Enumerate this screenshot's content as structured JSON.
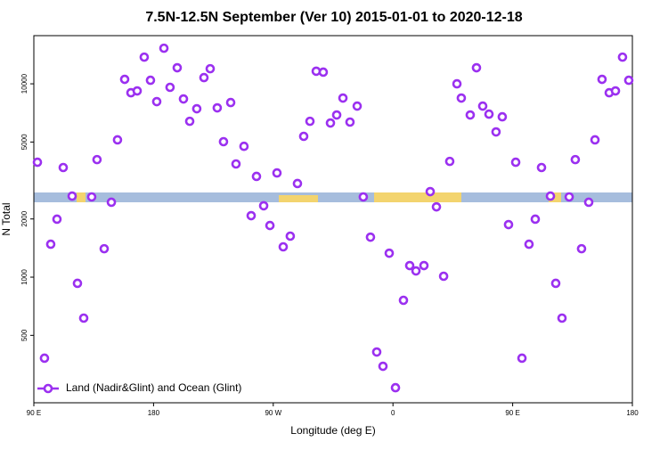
{
  "chart_data": {
    "type": "scatter",
    "title": "7.5N-12.5N September (Ver 10)   2015-01-01 to 2020-12-18",
    "x_label": "Longitude (deg E)",
    "y_label": "N Total",
    "xlim": [
      90,
      540
    ],
    "ylim": [
      224,
      17750
    ],
    "log_y": true,
    "grid": false,
    "legend": "lower left",
    "xticks": [
      {
        "value": 90,
        "label": "90 E"
      },
      {
        "value": 180,
        "label": "180"
      },
      {
        "value": 270,
        "label": "90 W"
      },
      {
        "value": 360,
        "label": "0"
      },
      {
        "value": 450,
        "label": "90 E"
      },
      {
        "value": 540,
        "label": "180"
      }
    ],
    "yticks": [
      500,
      1000,
      2000,
      5000,
      10000
    ],
    "series": [
      {
        "name": "Land (Nadir&Glint) and Ocean (Glint)",
        "color": "#9b30f0",
        "x": [
          92.7,
          98.0,
          102.7,
          107.4,
          112.1,
          118.8,
          122.8,
          127.5,
          133.5,
          137.5,
          142.9,
          148.3,
          152.9,
          158.3,
          163.0,
          167.7,
          173.0,
          177.7,
          182.4,
          187.8,
          192.4,
          197.8,
          202.5,
          207.2,
          212.5,
          217.9,
          222.6,
          227.9,
          232.6,
          238.0,
          242.0,
          248.0,
          253.4,
          257.4,
          262.8,
          267.5,
          272.8,
          277.5,
          282.8,
          288.2,
          292.9,
          297.6,
          302.3,
          307.6,
          313.0,
          317.7,
          322.4,
          327.7,
          333.1,
          337.7,
          343.1,
          347.8,
          352.5,
          357.2,
          361.9,
          367.9,
          372.6,
          377.3,
          383.3,
          388.0,
          392.7,
          398.1,
          402.7,
          408.1,
          411.4,
          418.1,
          422.8,
          427.5,
          432.2,
          437.5,
          442.2,
          446.9,
          452.3,
          457.0,
          462.3,
          467.0,
          471.7,
          478.4,
          482.4,
          487.1,
          492.5,
          497.1,
          501.8,
          507.2,
          511.9,
          517.2,
          522.6,
          527.3,
          532.6,
          537.3
        ],
        "values": [
          3930,
          381,
          1480,
          1995,
          3690,
          2625,
          929,
          614,
          2600,
          4055,
          1403,
          2440,
          5130,
          10550,
          8990,
          9190,
          13740,
          10430,
          8090,
          15280,
          9590,
          12110,
          8350,
          6400,
          7430,
          10770,
          11970,
          7510,
          5020,
          8000,
          3850,
          4750,
          2080,
          3320,
          2340,
          1850,
          3460,
          1435,
          1630,
          3050,
          5350,
          6400,
          11620,
          11490,
          6270,
          6900,
          8440,
          6340,
          7670,
          2600,
          1610,
          410,
          346,
          1330,
          268,
          759,
          1148,
          1077,
          1148,
          2770,
          2310,
          1011,
          3970,
          10000,
          8440,
          6900,
          12110,
          7670,
          6970,
          5640,
          6750,
          1870,
          3930,
          381,
          1480,
          1995,
          3690,
          2625,
          929,
          614,
          2600,
          4055,
          1403,
          2440,
          5130,
          10550,
          8990,
          9190,
          13740,
          10430
        ]
      }
    ]
  }
}
